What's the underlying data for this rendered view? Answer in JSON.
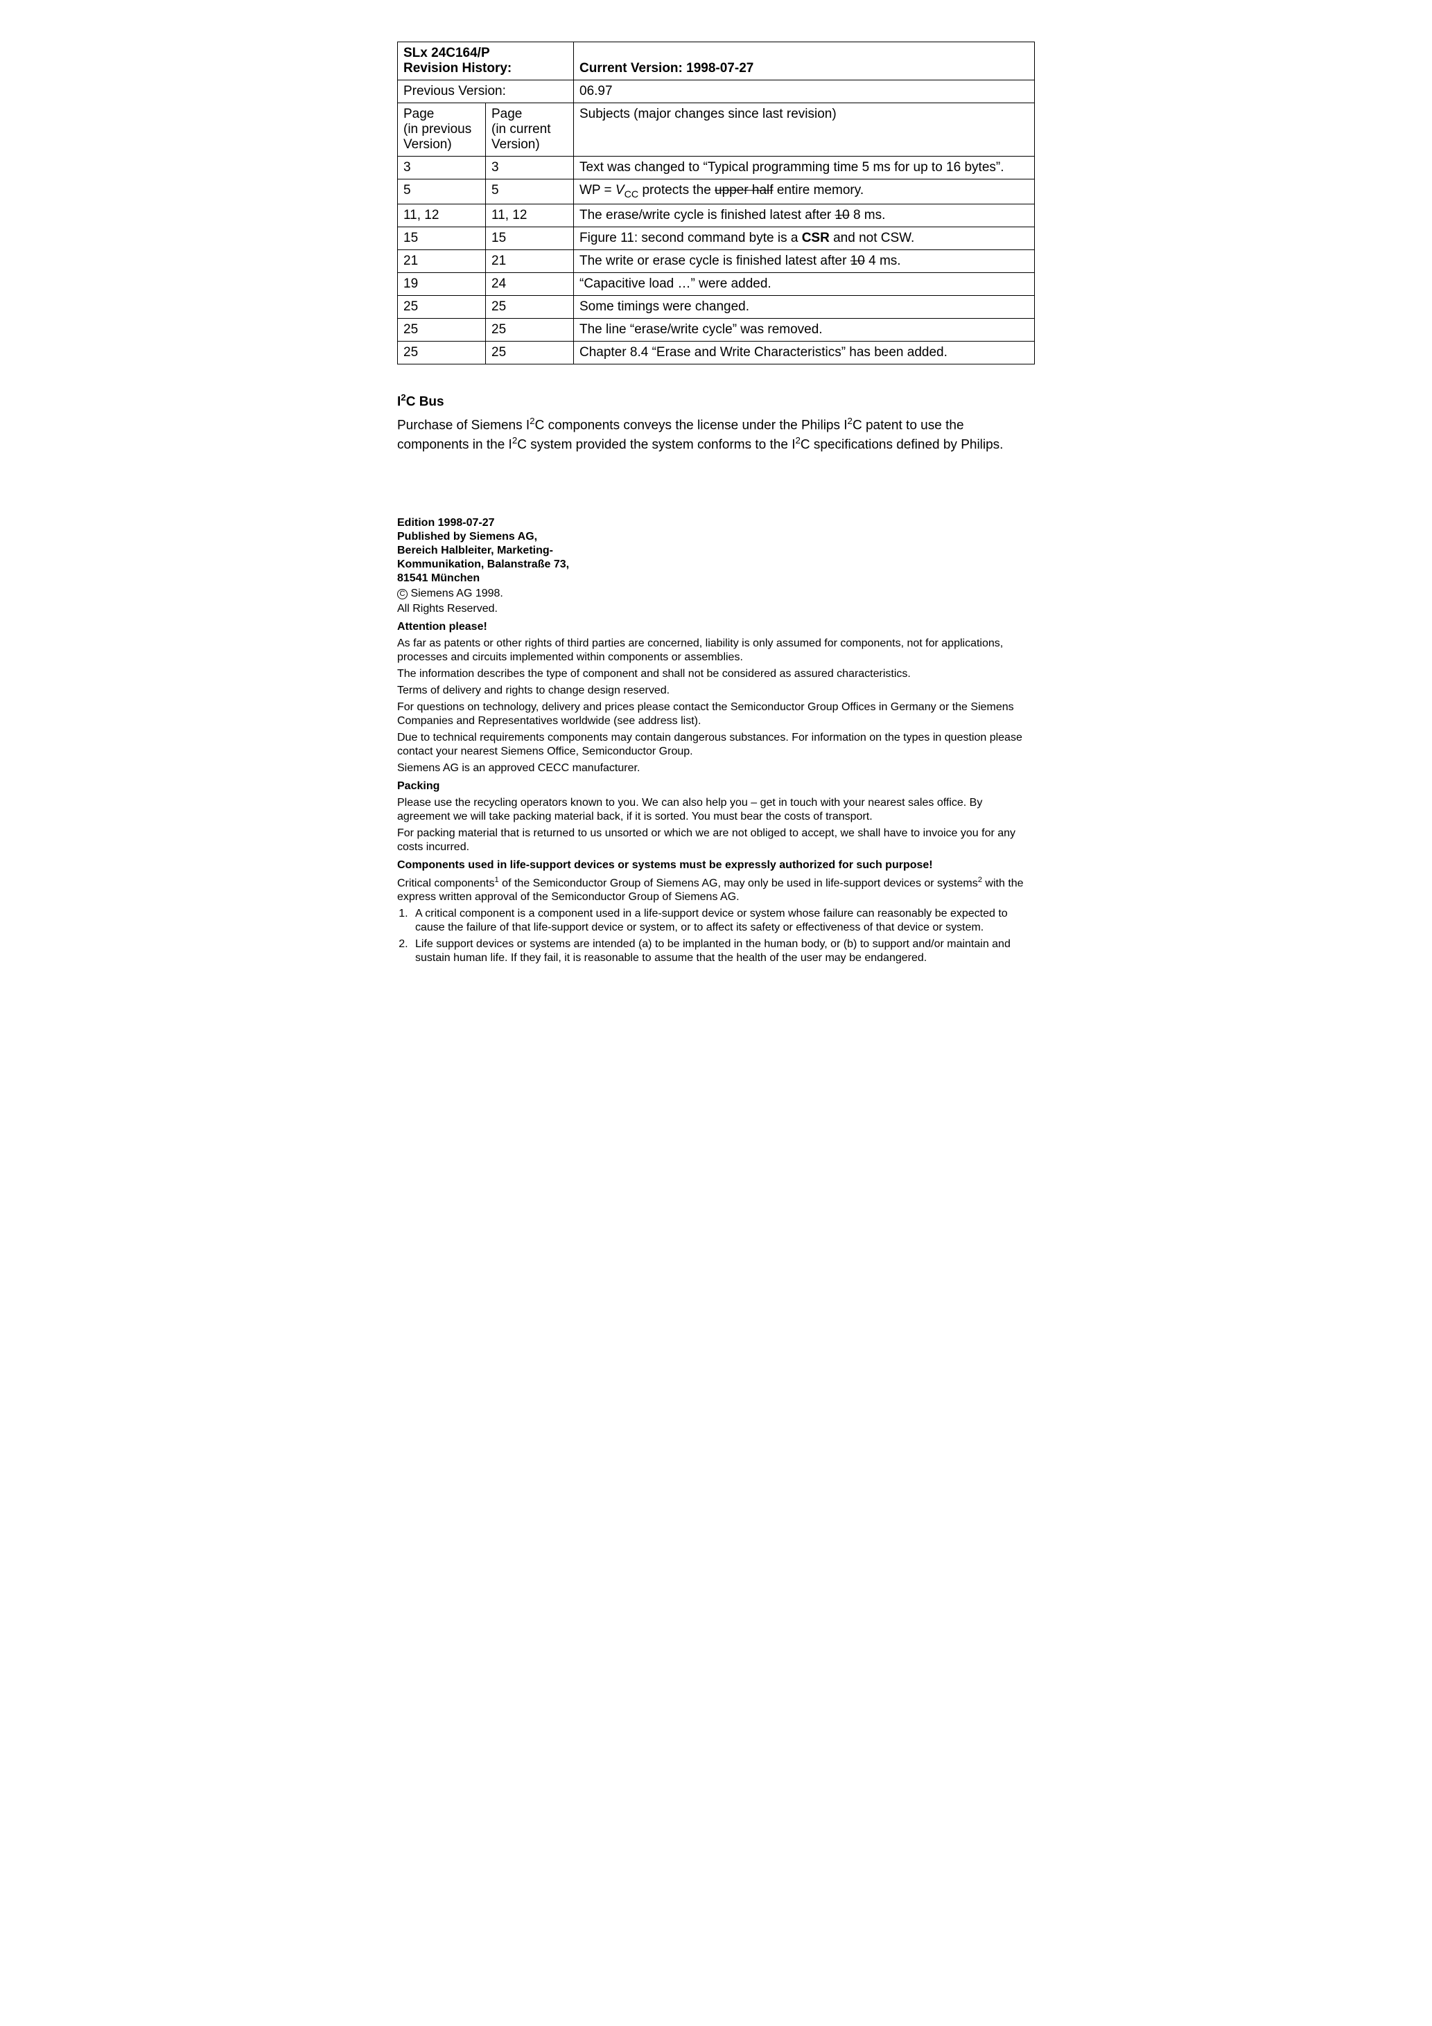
{
  "header": {
    "product": "SLx 24C164/P",
    "rev_hist_label": "Revision History:",
    "current_version_label": "Current Version: 1998-07-27",
    "prev_version_label": "Previous Version:",
    "prev_version_value": "06.97",
    "col_a": "Page\n(in previous Version)",
    "col_b": "Page\n(in current Version)",
    "col_c": "Subjects (major changes since last revision)"
  },
  "rows": [
    {
      "a": "3",
      "b": "3",
      "c_pre": "Text was changed to “Typical programming time 5 ms for up to 16 bytes”."
    },
    {
      "a": "5",
      "b": "5",
      "c_html": "WP = <i>V</i><span class=\"sub\">CC</span> protects the <span class=\"strike\">upper half</span> entire memory."
    },
    {
      "a": "11, 12",
      "b": "11, 12",
      "c_html": "The erase/write cycle is finished latest after <span class=\"strike\">10</span> 8 ms."
    },
    {
      "a": "15",
      "b": "15",
      "c_html": "Figure 11: second command byte is a <b>CSR</b> and not CSW."
    },
    {
      "a": "21",
      "b": "21",
      "c_html": "The write or erase cycle is finished latest after <span class=\"strike\">10</span> 4 ms."
    },
    {
      "a": "19",
      "b": "24",
      "c_pre": "“Capacitive load …” were added."
    },
    {
      "a": "25",
      "b": "25",
      "c_pre": "Some timings were changed."
    },
    {
      "a": "25",
      "b": "25",
      "c_pre": "The line “erase/write cycle” was removed."
    },
    {
      "a": "25",
      "b": "25",
      "c_pre": "Chapter 8.4 “Erase and Write Characteristics” has been added."
    }
  ],
  "i2c": {
    "heading_html": "I<span class=\"i2c-sup\">2</span>C Bus",
    "para_html": "Purchase of Siemens I<span class=\"i2c-sup\">2</span>C components conveys the license under the Philips I<span class=\"i2c-sup\">2</span>C patent to use the components in the I<span class=\"i2c-sup\">2</span>C system provided the system conforms to the I<span class=\"i2c-sup\">2</span>C specifications defined by Philips."
  },
  "legal": {
    "edition": "Edition 1998-07-27",
    "publisher_lines": [
      "Published by Siemens AG,",
      "Bereich Halbleiter, Marketing-",
      "Kommunikation, Balanstraße 73,",
      "81541 München"
    ],
    "copyright": "Siemens AG 1998.",
    "all_rights": "All Rights Reserved.",
    "attention": "Attention please!",
    "paras": [
      "As far as patents or other rights of third parties are concerned, liability is only assumed for components, not for applications, processes and circuits implemented within components or assemblies.",
      "The information describes the type of component and shall not be considered as assured characteristics.",
      "Terms of delivery and rights to change design reserved.",
      "For questions on technology, delivery and prices please contact the Semiconductor Group Offices in Germany or the Siemens Companies and Representatives worldwide (see address list).",
      "Due to technical requirements components may contain dangerous substances. For information on the types in question please contact your nearest Siemens Office, Semiconductor Group.",
      "Siemens AG is an approved CECC manufacturer."
    ],
    "packing_h": "Packing",
    "packing_paras": [
      "Please use the recycling operators known to you. We can also help you – get in touch with your nearest sales office. By agreement we will take packing material back, if it is sorted. You must bear the costs of transport.",
      "For packing material that is returned to us unsorted or which we are not obliged to accept, we shall have to invoice you for any costs incurred."
    ],
    "life_h": "Components used in life-support devices or systems must be expressly authorized for such purpose!",
    "life_para_html": "Critical components<sup class=\"fn\">1</sup> of the Semiconductor Group of Siemens AG, may only be used in life-support devices or systems<sup class=\"fn\">2</sup> with the express written approval of the Semiconductor Group of Siemens AG.",
    "footnotes": [
      "A critical component is a component used in a life-support device or system whose failure can reasonably be expected to cause the failure of that life-support device or system, or to affect its safety or effectiveness of that device or system.",
      "Life support devices or systems are intended (a) to be implanted in the human body, or (b) to support and/or maintain and sustain human life. If they fail, it is reasonable to assume that the health of the user may be endangered."
    ]
  }
}
